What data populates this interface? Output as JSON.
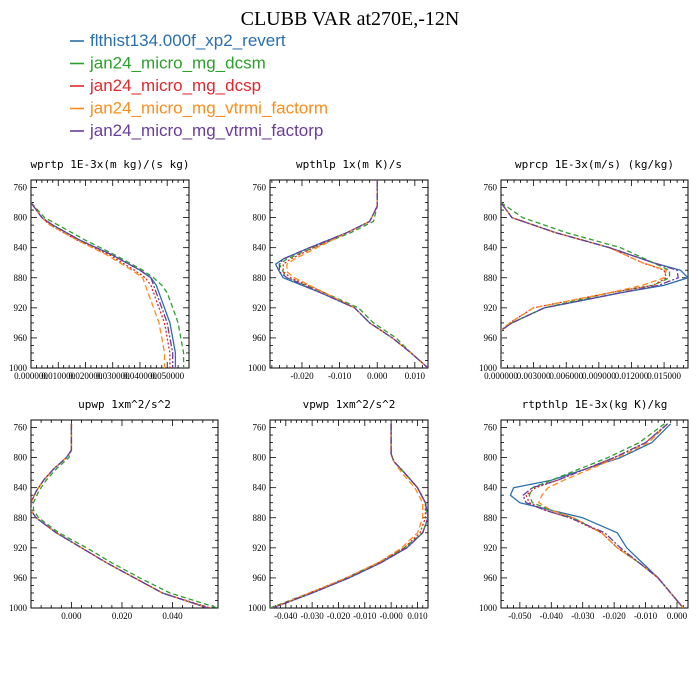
{
  "figure_title": "CLUBB VAR at270E,-12N",
  "legend": [
    {
      "label": "flthist134.000f_xp2_revert",
      "color": "#2a6fb0",
      "dash": "none"
    },
    {
      "label": "jan24_micro_mg_dcsm",
      "color": "#2ca02c",
      "dash": "5,3"
    },
    {
      "label": "jan24_micro_mg_dcsp",
      "color": "#e3262b",
      "dash": "2,2"
    },
    {
      "label": "jan24_micro_mg_vtrmi_factorm",
      "color": "#ff8c1a",
      "dash": "6,3"
    },
    {
      "label": "jan24_micro_mg_vtrmi_factorp",
      "color": "#6a3d9a",
      "dash": "7,2,2,2"
    }
  ],
  "chart_data": [
    {
      "type": "line",
      "title": "wprtp  1E-3x(m kg)/(s kg)",
      "xlim": [
        0.0,
        0.058
      ],
      "xticks": [
        "0.000000",
        "0.010000",
        "0.020000",
        "0.030000",
        "0.040000",
        "0.050000"
      ],
      "xtick_values": [
        0.0,
        0.01,
        0.02,
        0.03,
        0.04,
        0.05
      ],
      "ylim": [
        1000,
        750
      ],
      "yticks": [
        "760",
        "800",
        "840",
        "880",
        "920",
        "960",
        "1000"
      ],
      "y": [
        780,
        800,
        810,
        830,
        850,
        870,
        880,
        890,
        900,
        920,
        940,
        960,
        980,
        1000
      ],
      "series": [
        {
          "name": "flthist134.000f_xp2_revert",
          "x": [
            0.0,
            0.004,
            0.008,
            0.018,
            0.03,
            0.04,
            0.044,
            0.046,
            0.047,
            0.049,
            0.051,
            0.052,
            0.053,
            0.053
          ]
        },
        {
          "name": "jan24_micro_mg_dcsm",
          "x": [
            0.0,
            0.005,
            0.01,
            0.02,
            0.031,
            0.041,
            0.045,
            0.048,
            0.05,
            0.052,
            0.054,
            0.055,
            0.056,
            0.056
          ]
        },
        {
          "name": "jan24_micro_mg_dcsp",
          "x": [
            0.0,
            0.004,
            0.007,
            0.017,
            0.029,
            0.038,
            0.042,
            0.044,
            0.045,
            0.047,
            0.049,
            0.05,
            0.051,
            0.051
          ]
        },
        {
          "name": "jan24_micro_mg_vtrmi_factorm",
          "x": [
            0.0,
            0.004,
            0.007,
            0.017,
            0.028,
            0.037,
            0.041,
            0.042,
            0.043,
            0.045,
            0.047,
            0.048,
            0.049,
            0.049
          ]
        },
        {
          "name": "jan24_micro_mg_vtrmi_factorp",
          "x": [
            0.0,
            0.004,
            0.008,
            0.018,
            0.03,
            0.04,
            0.044,
            0.045,
            0.046,
            0.048,
            0.05,
            0.051,
            0.052,
            0.052
          ]
        }
      ]
    },
    {
      "type": "line",
      "title": "wpthlp  1x(m K)/s",
      "xlim": [
        -0.0285,
        0.0135
      ],
      "xticks": [
        "-0.020",
        "-0.010",
        "0.000",
        "0.010"
      ],
      "xtick_values": [
        -0.02,
        -0.01,
        0.0,
        0.01
      ],
      "ylim": [
        1000,
        750
      ],
      "yticks": [
        "760",
        "800",
        "840",
        "880",
        "920",
        "960",
        "1000"
      ],
      "y": [
        750,
        785,
        805,
        820,
        840,
        855,
        862,
        872,
        880,
        900,
        920,
        940,
        960,
        980,
        1000
      ],
      "series": [
        {
          "name": "flthist134.000f_xp2_revert",
          "x": [
            0.0,
            0.0,
            -0.002,
            -0.008,
            -0.018,
            -0.025,
            -0.027,
            -0.026,
            -0.025,
            -0.015,
            -0.006,
            -0.002,
            0.004,
            0.009,
            0.0135
          ]
        },
        {
          "name": "jan24_micro_mg_dcsm",
          "x": [
            0.0,
            0.0,
            -0.001,
            -0.007,
            -0.017,
            -0.024,
            -0.026,
            -0.025,
            -0.024,
            -0.014,
            -0.005,
            -0.001,
            0.005,
            0.009,
            0.0135
          ]
        },
        {
          "name": "jan24_micro_mg_dcsp",
          "x": [
            0.0,
            0.0,
            -0.002,
            -0.008,
            -0.017,
            -0.023,
            -0.025,
            -0.025,
            -0.023,
            -0.014,
            -0.006,
            -0.002,
            0.004,
            0.009,
            0.0135
          ]
        },
        {
          "name": "jan24_micro_mg_vtrmi_factorm",
          "x": [
            0.0,
            0.0,
            -0.002,
            -0.008,
            -0.016,
            -0.022,
            -0.024,
            -0.024,
            -0.022,
            -0.014,
            -0.006,
            -0.002,
            0.004,
            0.009,
            0.0135
          ]
        },
        {
          "name": "jan24_micro_mg_vtrmi_factorp",
          "x": [
            0.0,
            0.0,
            -0.002,
            -0.008,
            -0.018,
            -0.025,
            -0.026,
            -0.026,
            -0.024,
            -0.015,
            -0.006,
            -0.002,
            0.004,
            0.009,
            0.0135
          ]
        }
      ]
    },
    {
      "type": "line",
      "title": "wprcp  1E-3x(m/s) (kg/kg)",
      "xlim": [
        0.0,
        0.0172
      ],
      "xticks": [
        "0.000000",
        "0.003000",
        "0.006000",
        "0.009000",
        "0.012000",
        "0.015000"
      ],
      "xtick_values": [
        0.0,
        0.003,
        0.006,
        0.009,
        0.012,
        0.015
      ],
      "ylim": [
        1000,
        750
      ],
      "yticks": [
        "760",
        "800",
        "840",
        "880",
        "920",
        "960",
        "1000"
      ],
      "y": [
        780,
        800,
        820,
        840,
        860,
        870,
        880,
        890,
        900,
        920,
        940,
        950,
        960,
        1000
      ],
      "series": [
        {
          "name": "flthist134.000f_xp2_revert",
          "x": [
            0.0,
            0.001,
            0.005,
            0.01,
            0.014,
            0.0165,
            0.0172,
            0.015,
            0.011,
            0.004,
            0.001,
            0.0,
            0.0,
            0.0
          ]
        },
        {
          "name": "jan24_micro_mg_dcsm",
          "x": [
            0.0,
            0.002,
            0.006,
            0.011,
            0.014,
            0.0155,
            0.0155,
            0.014,
            0.01,
            0.004,
            0.001,
            0.0,
            0.0,
            0.0
          ]
        },
        {
          "name": "jan24_micro_mg_dcsp",
          "x": [
            0.0,
            0.001,
            0.005,
            0.01,
            0.013,
            0.015,
            0.0152,
            0.014,
            0.01,
            0.003,
            0.0008,
            0.0,
            0.0,
            0.0
          ]
        },
        {
          "name": "jan24_micro_mg_vtrmi_factorm",
          "x": [
            0.0,
            0.001,
            0.005,
            0.01,
            0.013,
            0.0152,
            0.015,
            0.013,
            0.01,
            0.003,
            0.0008,
            0.0,
            0.0,
            0.0
          ]
        },
        {
          "name": "jan24_micro_mg_vtrmi_factorp",
          "x": [
            0.0,
            0.001,
            0.005,
            0.01,
            0.014,
            0.0162,
            0.0163,
            0.0145,
            0.011,
            0.004,
            0.001,
            0.0,
            0.0,
            0.0
          ]
        }
      ]
    },
    {
      "type": "line",
      "title": "upwp  1xm^2/s^2",
      "xlim": [
        -0.016,
        0.058
      ],
      "xticks": [
        "0.000",
        "0.020",
        "0.040"
      ],
      "xtick_values": [
        0.0,
        0.02,
        0.04
      ],
      "ylim": [
        1000,
        750
      ],
      "yticks": [
        "760",
        "800",
        "840",
        "880",
        "920",
        "960",
        "1000"
      ],
      "y": [
        755,
        790,
        800,
        815,
        830,
        845,
        860,
        870,
        880,
        900,
        920,
        940,
        960,
        980,
        1000
      ],
      "series": [
        {
          "name": "flthist134.000f_xp2_revert",
          "x": [
            0.0,
            0.0,
            -0.002,
            -0.007,
            -0.011,
            -0.014,
            -0.016,
            -0.016,
            -0.014,
            -0.006,
            0.004,
            0.014,
            0.025,
            0.036,
            0.054
          ]
        },
        {
          "name": "jan24_micro_mg_dcsm",
          "x": [
            0.0,
            0.0,
            -0.001,
            -0.006,
            -0.01,
            -0.013,
            -0.015,
            -0.015,
            -0.013,
            -0.005,
            0.006,
            0.016,
            0.027,
            0.039,
            0.058
          ]
        },
        {
          "name": "jan24_micro_mg_dcsp",
          "x": [
            0.0,
            0.0,
            -0.002,
            -0.007,
            -0.011,
            -0.014,
            -0.016,
            -0.016,
            -0.014,
            -0.006,
            0.004,
            0.014,
            0.025,
            0.036,
            0.055
          ]
        },
        {
          "name": "jan24_micro_mg_vtrmi_factorm",
          "x": [
            0.0,
            0.0,
            -0.002,
            -0.007,
            -0.011,
            -0.014,
            -0.016,
            -0.016,
            -0.014,
            -0.006,
            0.004,
            0.014,
            0.025,
            0.036,
            0.054
          ]
        },
        {
          "name": "jan24_micro_mg_vtrmi_factorp",
          "x": [
            0.0,
            0.0,
            -0.002,
            -0.007,
            -0.011,
            -0.014,
            -0.016,
            -0.016,
            -0.014,
            -0.006,
            0.004,
            0.014,
            0.025,
            0.036,
            0.054
          ]
        }
      ]
    },
    {
      "type": "line",
      "title": "vpwp  1xm^2/s^2",
      "xlim": [
        -0.046,
        0.014
      ],
      "xticks": [
        "-0.040",
        "-0.030",
        "-0.020",
        "-0.010",
        "-0.000",
        "0.010"
      ],
      "xtick_values": [
        -0.04,
        -0.03,
        -0.02,
        -0.01,
        0.0,
        0.01
      ],
      "ylim": [
        1000,
        750
      ],
      "yticks": [
        "760",
        "800",
        "840",
        "880",
        "920",
        "960",
        "1000"
      ],
      "y": [
        755,
        795,
        805,
        820,
        840,
        860,
        880,
        900,
        920,
        940,
        960,
        980,
        1000
      ],
      "series": [
        {
          "name": "flthist134.000f_xp2_revert",
          "x": [
            0.0,
            0.0,
            0.001,
            0.005,
            0.01,
            0.013,
            0.014,
            0.012,
            0.006,
            -0.004,
            -0.016,
            -0.03,
            -0.045
          ]
        },
        {
          "name": "jan24_micro_mg_dcsm",
          "x": [
            0.0,
            0.0,
            0.001,
            0.005,
            0.01,
            0.013,
            0.014,
            0.012,
            0.005,
            -0.005,
            -0.017,
            -0.031,
            -0.046
          ]
        },
        {
          "name": "jan24_micro_mg_dcsp",
          "x": [
            0.0,
            0.0,
            0.001,
            0.005,
            0.01,
            0.013,
            0.013,
            0.011,
            0.005,
            -0.005,
            -0.017,
            -0.031,
            -0.045
          ]
        },
        {
          "name": "jan24_micro_mg_vtrmi_factorm",
          "x": [
            0.0,
            0.0,
            0.001,
            0.004,
            0.009,
            0.012,
            0.012,
            0.01,
            0.004,
            -0.005,
            -0.017,
            -0.031,
            -0.045
          ]
        },
        {
          "name": "jan24_micro_mg_vtrmi_factorp",
          "x": [
            0.0,
            0.0,
            0.001,
            0.005,
            0.01,
            0.013,
            0.014,
            0.012,
            0.006,
            -0.004,
            -0.016,
            -0.03,
            -0.045
          ]
        }
      ]
    },
    {
      "type": "line",
      "title": "rtpthlp  1E-3x(kg K)/kg",
      "xlim": [
        -0.056,
        0.0035
      ],
      "xticks": [
        "-0.050",
        "-0.040",
        "-0.030",
        "-0.020",
        "-0.010",
        "0.000"
      ],
      "xtick_values": [
        -0.05,
        -0.04,
        -0.03,
        -0.02,
        -0.01,
        0.0
      ],
      "ylim": [
        1000,
        750
      ],
      "yticks": [
        "760",
        "800",
        "840",
        "880",
        "920",
        "960",
        "1000"
      ],
      "y": [
        755,
        780,
        800,
        830,
        840,
        850,
        860,
        870,
        880,
        900,
        920,
        940,
        960,
        980,
        1000
      ],
      "series": [
        {
          "name": "flthist134.000f_xp2_revert",
          "x": [
            -0.002,
            -0.008,
            -0.018,
            -0.04,
            -0.052,
            -0.053,
            -0.05,
            -0.04,
            -0.03,
            -0.019,
            -0.016,
            -0.011,
            -0.006,
            -0.002,
            0.002
          ]
        },
        {
          "name": "jan24_micro_mg_dcsm",
          "x": [
            -0.004,
            -0.012,
            -0.022,
            -0.04,
            -0.046,
            -0.047,
            -0.046,
            -0.04,
            -0.033,
            -0.024,
            -0.019,
            -0.012,
            -0.006,
            -0.002,
            0.002
          ]
        },
        {
          "name": "jan24_micro_mg_dcsp",
          "x": [
            -0.003,
            -0.01,
            -0.02,
            -0.038,
            -0.045,
            -0.048,
            -0.047,
            -0.042,
            -0.034,
            -0.024,
            -0.019,
            -0.012,
            -0.006,
            -0.002,
            0.002
          ]
        },
        {
          "name": "jan24_micro_mg_vtrmi_factorm",
          "x": [
            -0.003,
            -0.009,
            -0.019,
            -0.036,
            -0.041,
            -0.043,
            -0.044,
            -0.04,
            -0.033,
            -0.024,
            -0.019,
            -0.012,
            -0.006,
            -0.002,
            0.002
          ]
        },
        {
          "name": "jan24_micro_mg_vtrmi_factorp",
          "x": [
            -0.003,
            -0.01,
            -0.02,
            -0.038,
            -0.046,
            -0.049,
            -0.048,
            -0.042,
            -0.034,
            -0.023,
            -0.018,
            -0.012,
            -0.006,
            -0.002,
            0.002
          ]
        }
      ]
    }
  ]
}
